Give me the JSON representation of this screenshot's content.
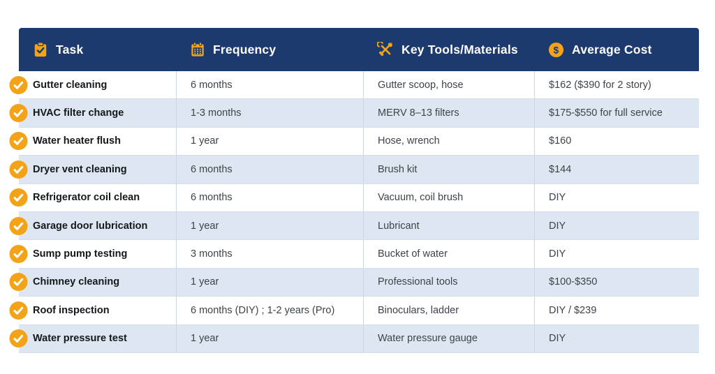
{
  "colors": {
    "navy": "#1d3a6e",
    "orange": "#f2a318",
    "row_alt": "#dee7f1",
    "grid_line": "#ccd5e0",
    "row_line": "#d5dde8"
  },
  "table": {
    "columns": [
      {
        "label": "Task",
        "icon": "clipboard-check-icon"
      },
      {
        "label": "Frequency",
        "icon": "calendar-icon"
      },
      {
        "label": "Key Tools/Materials",
        "icon": "crossed-tools-icon"
      },
      {
        "label": "Average Cost",
        "icon": "dollar-circle-icon"
      }
    ],
    "rows": [
      {
        "task": "Gutter cleaning",
        "frequency": "6 months",
        "tools": "Gutter scoop, hose",
        "cost": "$162 ($390 for 2 story)"
      },
      {
        "task": "HVAC filter change",
        "frequency": "1-3 months",
        "tools": "MERV 8–13 filters",
        "cost": "$175-$550 for full service"
      },
      {
        "task": "Water heater flush",
        "frequency": "1 year",
        "tools": "Hose, wrench",
        "cost": "$160"
      },
      {
        "task": "Dryer vent cleaning",
        "frequency": "6 months",
        "tools": "Brush kit",
        "cost": "$144"
      },
      {
        "task": "Refrigerator coil clean",
        "frequency": "6 months",
        "tools": "Vacuum, coil brush",
        "cost": "DIY"
      },
      {
        "task": "Garage door lubrication",
        "frequency": "1 year",
        "tools": "Lubricant",
        "cost": "DIY"
      },
      {
        "task": "Sump pump testing",
        "frequency": "3 months",
        "tools": "Bucket of water",
        "cost": "DIY"
      },
      {
        "task": "Chimney cleaning",
        "frequency": "1 year",
        "tools": "Professional tools",
        "cost": "$100-$350"
      },
      {
        "task": "Roof inspection",
        "frequency": "6 months (DIY) ; 1-2 years (Pro)",
        "tools": "Binoculars, ladder",
        "cost": "DIY / $239"
      },
      {
        "task": "Water pressure test",
        "frequency": "1 year",
        "tools": "Water pressure gauge",
        "cost": "DIY"
      }
    ]
  }
}
